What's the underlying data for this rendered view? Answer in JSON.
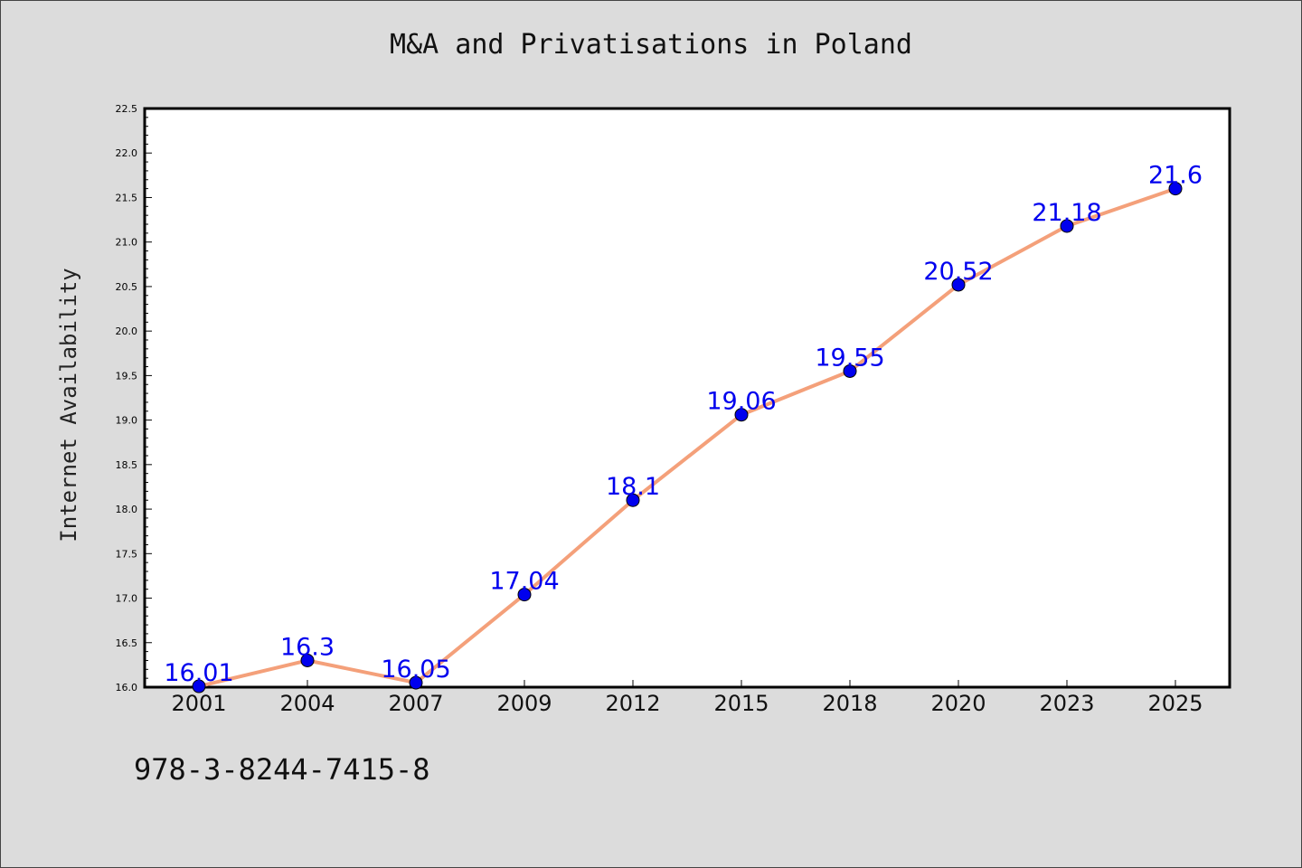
{
  "chart_data": {
    "type": "line",
    "title": "M&A and Privatisations in Poland",
    "xlabel": "",
    "ylabel": "Internet Availability",
    "categories": [
      "2001",
      "2004",
      "2007",
      "2009",
      "2012",
      "2015",
      "2018",
      "2020",
      "2023",
      "2025"
    ],
    "values": [
      16.01,
      16.3,
      16.05,
      17.04,
      18.1,
      19.06,
      19.55,
      20.52,
      21.18,
      21.6
    ],
    "data_labels": [
      "16.01",
      "16.3",
      "16.05",
      "17.04",
      "18.1",
      "19.06",
      "19.55",
      "20.52",
      "21.18",
      "21.6"
    ],
    "ylim": [
      16.0,
      22.5
    ],
    "yticks": [
      "16.0",
      "16.5",
      "17.0",
      "17.5",
      "18.0",
      "18.5",
      "19.0",
      "19.5",
      "20.0",
      "20.5",
      "21.0",
      "21.5",
      "22.0",
      "22.5"
    ],
    "grid": false,
    "line_color": "#f4a07a",
    "marker_color": "#0000ee",
    "label_color": "#0000ee"
  },
  "footer": {
    "isbn": "978-3-8244-7415-8"
  }
}
